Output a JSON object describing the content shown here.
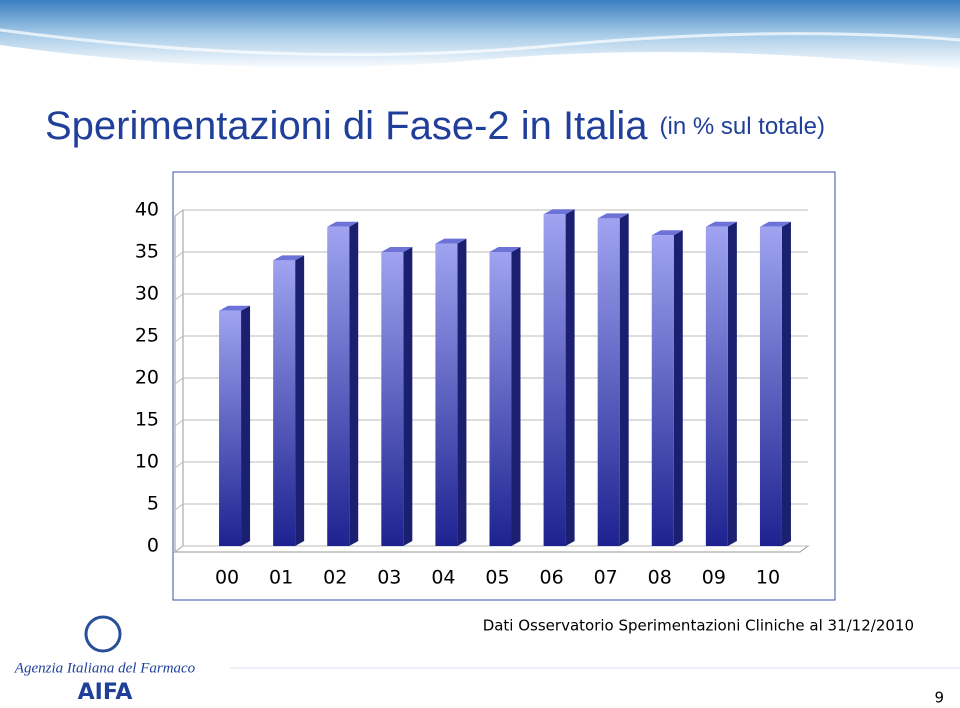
{
  "chart_data": {
    "type": "bar3d",
    "title": "Sperimentazioni di Fase-2 in Italia",
    "subtitle": "(in % sul totale)",
    "categories": [
      "00",
      "01",
      "02",
      "03",
      "04",
      "05",
      "06",
      "07",
      "08",
      "09",
      "10"
    ],
    "values": [
      28,
      34,
      38,
      35,
      36,
      35,
      39.5,
      39,
      37,
      38,
      38
    ],
    "color": "#3a3fc0",
    "ylim": [
      0,
      40
    ],
    "yticks": [
      0,
      5,
      10,
      15,
      20,
      25,
      30,
      35,
      40
    ],
    "grid": true,
    "source": "Dati Osservatorio Sperimentazioni Cliniche al 31/12/2010"
  },
  "footer": {
    "agency": "Agenzia Italiana del Farmaco",
    "logo": "AIFA",
    "page_number": "9"
  }
}
